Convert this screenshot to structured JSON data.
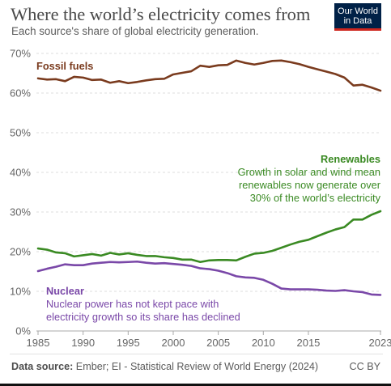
{
  "title": "Where the world’s electricity comes from",
  "subtitle": "Each source's share of global electricity generation.",
  "logo": [
    "Our World",
    "in Data"
  ],
  "footer": {
    "source_label": "Data source:",
    "source_text": "Ember; EI - Statistical Review of World Energy (2024)",
    "license": "CC BY"
  },
  "annotations": {
    "fossil": {
      "heading": "Fossil fuels"
    },
    "renewables": {
      "heading": "Renewables",
      "text": [
        "Growth in solar and wind mean",
        "renewables now generate over",
        "30% of the world’s electricity"
      ]
    },
    "nuclear": {
      "heading": "Nuclear",
      "text": [
        "Nuclear power has not kept pace with",
        "electricity growth so its share has declined"
      ]
    }
  },
  "colors": {
    "fossil": "#7a3b1e",
    "renewables": "#3a8a23",
    "nuclear": "#7a48a8"
  },
  "chart_data": {
    "type": "line",
    "xlabel": "",
    "ylabel": "",
    "x": [
      1985,
      1986,
      1987,
      1988,
      1989,
      1990,
      1991,
      1992,
      1993,
      1994,
      1995,
      1996,
      1997,
      1998,
      1999,
      2000,
      2001,
      2002,
      2003,
      2004,
      2005,
      2006,
      2007,
      2008,
      2009,
      2010,
      2011,
      2012,
      2013,
      2014,
      2015,
      2016,
      2017,
      2018,
      2019,
      2020,
      2021,
      2022,
      2023
    ],
    "x_ticks": [
      "1985",
      "1990",
      "1995",
      "2000",
      "2005",
      "2010",
      "2015",
      "2023"
    ],
    "y_ticks": [
      "0%",
      "10%",
      "20%",
      "30%",
      "40%",
      "50%",
      "60%",
      "70%"
    ],
    "ylim": [
      0,
      70
    ],
    "grid": "horizontal dashed",
    "series": [
      {
        "name": "Fossil fuels",
        "values": [
          63.7,
          63.4,
          63.5,
          63.0,
          64.1,
          63.9,
          63.3,
          63.4,
          62.6,
          63.0,
          62.5,
          62.8,
          63.2,
          63.5,
          63.6,
          64.7,
          65.1,
          65.5,
          66.9,
          66.6,
          67.0,
          67.1,
          68.2,
          67.6,
          67.2,
          67.6,
          68.1,
          68.2,
          67.8,
          67.3,
          66.6,
          66.0,
          65.4,
          64.8,
          63.9,
          61.9,
          62.1,
          61.4,
          60.6
        ]
      },
      {
        "name": "Renewables",
        "values": [
          20.8,
          20.5,
          19.8,
          19.6,
          18.8,
          19.1,
          19.4,
          19.0,
          19.7,
          19.3,
          19.6,
          19.2,
          18.9,
          18.9,
          18.6,
          18.4,
          18.0,
          18.0,
          17.4,
          17.8,
          17.9,
          17.9,
          17.8,
          18.7,
          19.5,
          19.7,
          20.2,
          21.0,
          21.8,
          22.5,
          23.0,
          23.9,
          24.8,
          25.6,
          26.2,
          28.1,
          28.1,
          29.3,
          30.2
        ]
      },
      {
        "name": "Nuclear",
        "values": [
          15.1,
          15.7,
          16.2,
          16.8,
          16.6,
          16.6,
          17.0,
          17.2,
          17.4,
          17.3,
          17.4,
          17.5,
          17.2,
          17.0,
          17.1,
          16.9,
          16.7,
          16.4,
          15.8,
          15.6,
          15.2,
          14.6,
          13.8,
          13.5,
          13.4,
          12.9,
          11.9,
          10.7,
          10.5,
          10.5,
          10.5,
          10.4,
          10.2,
          10.1,
          10.3,
          10.0,
          9.8,
          9.2,
          9.1
        ]
      }
    ]
  }
}
